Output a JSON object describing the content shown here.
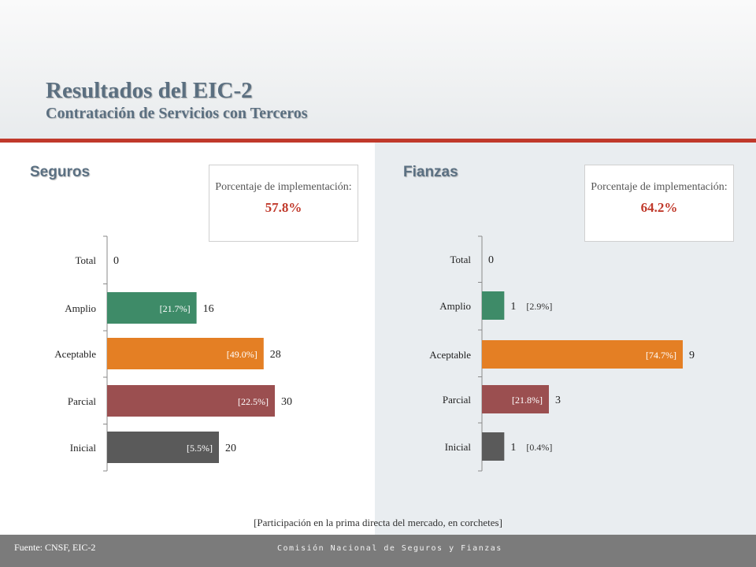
{
  "header": {
    "title": "Resultados del EIC-2",
    "subtitle": "Contratación de Servicios con Terceros"
  },
  "left": {
    "section": "Seguros",
    "box_label": "Porcentaje de implementación:",
    "box_value": "57.8%"
  },
  "right": {
    "section": "Fianzas",
    "box_label": "Porcentaje de implementación:",
    "box_value": "64.2%"
  },
  "note": "[Participación en la prima directa del mercado, en corchetes]",
  "footer": {
    "source": "Fuente: CNSF, EIC-2",
    "org": "Comisión Nacional de Seguros y Fianzas"
  },
  "colors": {
    "Amplio": "#3e8b68",
    "Aceptable": "#e47f24",
    "Parcial": "#9b4f50",
    "Inicial": "#5a5a5a",
    "Total": "#7f7f7f",
    "accent": "#c0392b"
  },
  "chart_data": [
    {
      "type": "bar",
      "orientation": "horizontal",
      "categories": [
        "Total",
        "Amplio",
        "Aceptable",
        "Parcial",
        "Inicial"
      ],
      "values": [
        0,
        16,
        28,
        30,
        20
      ],
      "shares": [
        "",
        "[21.7%]",
        "[49.0%]",
        "[22.5%]",
        "[5.5%]"
      ],
      "xlim": [
        0,
        30
      ],
      "grid": false
    },
    {
      "type": "bar",
      "orientation": "horizontal",
      "categories": [
        "Total",
        "Amplio",
        "Aceptable",
        "Parcial",
        "Inicial"
      ],
      "values": [
        0,
        1,
        9,
        3,
        1
      ],
      "shares": [
        "",
        "[2.9%]",
        "[74.7%]",
        "[21.8%]",
        "[0.4%]"
      ],
      "xlim": [
        0,
        9
      ],
      "grid": false
    }
  ]
}
